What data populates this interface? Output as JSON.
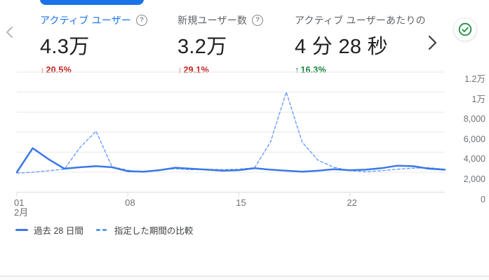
{
  "header": {
    "accent_color": "#1a73e8",
    "metrics": [
      {
        "title": "アクティブ ユーザー",
        "value": "4.3万",
        "delta": "20.5%",
        "direction": "down",
        "selected": true,
        "has_help": true
      },
      {
        "title": "新規ユーザー数",
        "value": "3.2万",
        "delta": "29.1%",
        "direction": "down",
        "selected": false,
        "has_help": true
      },
      {
        "title": "アクティブ ユーザーあたりの",
        "value": "4 分 28 秒",
        "delta": "16.3%",
        "direction": "up",
        "selected": false,
        "has_help": false
      }
    ],
    "delta_colors": {
      "down": "#c5221f",
      "up": "#188038"
    }
  },
  "chart_data": {
    "type": "line",
    "x": [
      1,
      2,
      3,
      4,
      5,
      6,
      7,
      8,
      9,
      10,
      11,
      12,
      13,
      14,
      15,
      16,
      17,
      18,
      19,
      20,
      21,
      22,
      23,
      24,
      25,
      26,
      27,
      28
    ],
    "x_tick_labels": [
      {
        "pos": 1,
        "label": "01",
        "sub": "2月"
      },
      {
        "pos": 8,
        "label": "08"
      },
      {
        "pos": 15,
        "label": "15"
      },
      {
        "pos": 22,
        "label": "22"
      }
    ],
    "y_ticks": [
      0,
      2000,
      4000,
      6000,
      8000,
      10000,
      12000
    ],
    "y_tick_labels": [
      "0",
      "2,000",
      "4,000",
      "6,000",
      "8,000",
      "1万",
      "1.2万"
    ],
    "ylim": [
      0,
      12000
    ],
    "grid": "horizontal",
    "legend_position": "bottom-left",
    "series": [
      {
        "name": "過去 28 日間",
        "style": "solid",
        "color": "#3b78e7",
        "values": [
          2000,
          4400,
          3300,
          2350,
          2500,
          2600,
          2500,
          2100,
          2050,
          2200,
          2450,
          2350,
          2250,
          2150,
          2200,
          2400,
          2250,
          2150,
          2050,
          2150,
          2300,
          2200,
          2250,
          2400,
          2650,
          2600,
          2350,
          2250
        ]
      },
      {
        "name": "指定した期間の比較",
        "style": "dashed",
        "color": "#5e97f6",
        "values": [
          1900,
          2000,
          2150,
          2300,
          4500,
          6100,
          2550,
          2200,
          2000,
          2250,
          2350,
          2250,
          2300,
          2250,
          2300,
          2450,
          5000,
          10000,
          5000,
          3200,
          2500,
          2150,
          2050,
          2150,
          2300,
          2400,
          2450,
          2300
        ]
      }
    ]
  },
  "status_badge": {
    "icon": "check-circle",
    "color": "#1e8e3e"
  }
}
